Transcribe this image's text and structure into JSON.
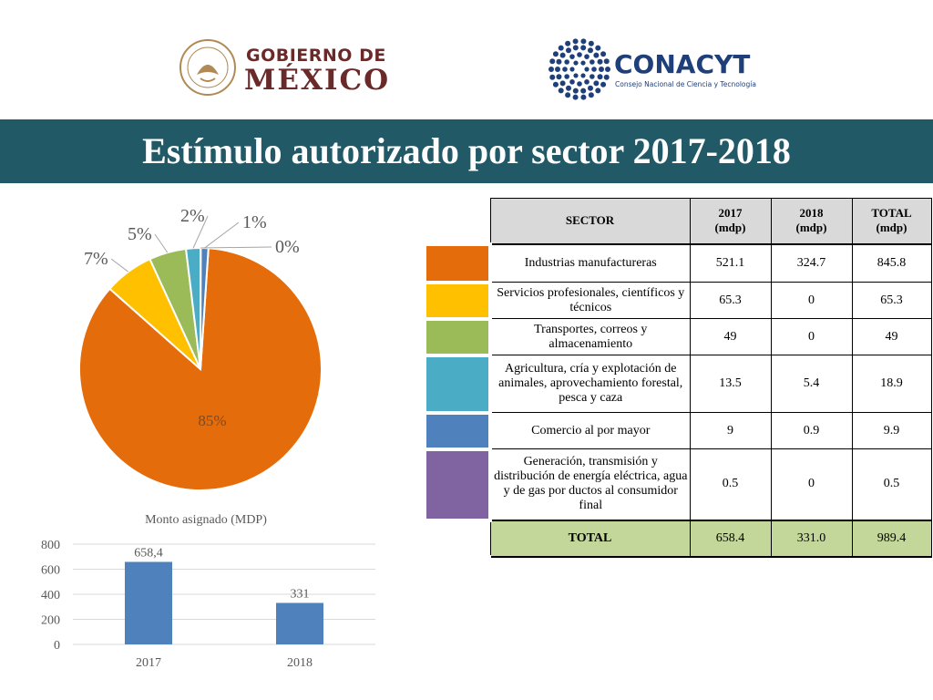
{
  "header": {
    "gobierno_line1": "GOBIERNO DE",
    "gobierno_line2": "MÉXICO",
    "conacyt_name": "CONACYT",
    "conacyt_subtitle": "Consejo Nacional de Ciencia y Tecnología"
  },
  "title": "Estímulo autorizado por sector 2017-2018",
  "colors": {
    "banner": "#215967",
    "industrias": "#E46C0A",
    "servicios": "#FFC000",
    "transportes": "#9BBB59",
    "agricultura": "#4BACC6",
    "comercio": "#4F81BD",
    "generacion": "#8064A2",
    "bars": "#4F81BD",
    "total_row": "#C4D79B"
  },
  "chart_data": [
    {
      "type": "pie",
      "categories": [
        "Industrias manufactureras",
        "Servicios profesionales, científicos y técnicos",
        "Transportes, correos y almacenamiento",
        "Agricultura, cría y explotación de animales, aprovechamiento forestal, pesca y caza",
        "Comercio al por mayor",
        "Generación, transmisión y distribución de energía eléctrica, agua y de gas por ductos al consumidor final"
      ],
      "values": [
        845.8,
        65.3,
        49,
        18.9,
        9.9,
        0.5
      ],
      "labels": [
        "85%",
        "7%",
        "5%",
        "2%",
        "1%",
        "0%"
      ]
    },
    {
      "type": "bar",
      "title": "Monto asignado (MDP)",
      "categories": [
        "2017",
        "2018"
      ],
      "values": [
        658.4,
        331
      ],
      "data_labels": [
        "658,4",
        "331"
      ],
      "ylim": [
        0,
        800
      ],
      "yticks": [
        "0",
        "200",
        "400",
        "600",
        "800"
      ],
      "grid": true
    },
    {
      "type": "table",
      "headers": [
        "SECTOR",
        "2017\n(mdp)",
        "2018\n(mdp)",
        "TOTAL\n(mdp)"
      ],
      "header_parts": [
        {
          "line1": "SECTOR",
          "line2": ""
        },
        {
          "line1": "2017",
          "line2": "(mdp)"
        },
        {
          "line1": "2018",
          "line2": "(mdp)"
        },
        {
          "line1": "TOTAL",
          "line2": "(mdp)"
        }
      ],
      "rows": [
        {
          "sector": "Industrias manufactureras",
          "y2017": "521.1",
          "y2018": "324.7",
          "total": "845.8"
        },
        {
          "sector": "Servicios profesionales, científicos y técnicos",
          "y2017": "65.3",
          "y2018": "0",
          "total": "65.3"
        },
        {
          "sector": "Transportes, correos y almacenamiento",
          "y2017": "49",
          "y2018": "0",
          "total": "49"
        },
        {
          "sector": "Agricultura, cría y explotación de animales, aprovechamiento forestal, pesca y caza",
          "y2017": "13.5",
          "y2018": "5.4",
          "total": "18.9"
        },
        {
          "sector": "Comercio al por mayor",
          "y2017": "9",
          "y2018": "0.9",
          "total": "9.9"
        },
        {
          "sector": "Generación, transmisión y distribución de energía eléctrica, agua y de gas por ductos al consumidor final",
          "y2017": "0.5",
          "y2018": "0",
          "total": "0.5"
        }
      ],
      "total_row": {
        "sector": "TOTAL",
        "y2017": "658.4",
        "y2018": "331.0",
        "total": "989.4"
      }
    }
  ]
}
